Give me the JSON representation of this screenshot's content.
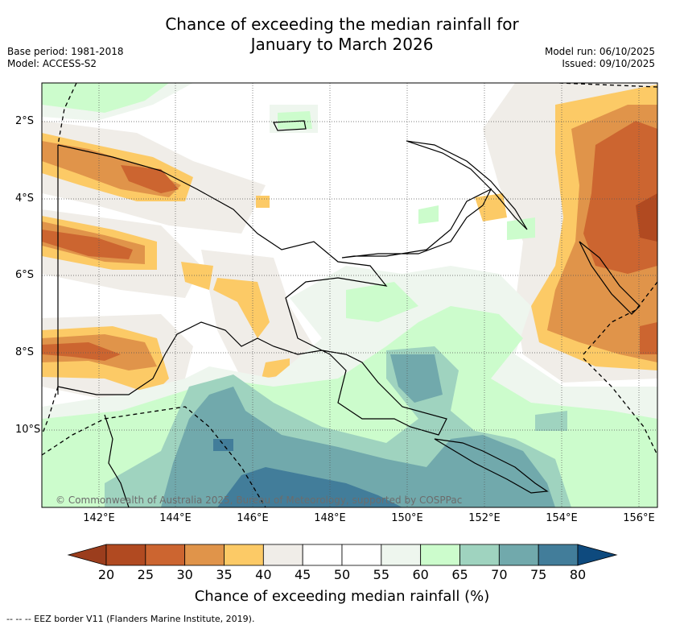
{
  "title": {
    "line1": "Chance of exceeding the median rainfall for",
    "line2": "January to March 2026"
  },
  "meta": {
    "base_period": "Base period: 1981-2018",
    "model": "Model: ACCESS-S2",
    "model_run": "Model run: 06/10/2025",
    "issued": "Issued: 09/10/2025"
  },
  "map": {
    "lon_labels": [
      "142°E",
      "144°E",
      "146°E",
      "148°E",
      "150°E",
      "152°E",
      "154°E",
      "156°E"
    ],
    "lat_labels": [
      "2°S",
      "4°S",
      "6°S",
      "8°S",
      "10°S"
    ],
    "copyright": "© Commonwealth of Australia 2025, Bureau of Meteorology, supported by COSPPac"
  },
  "colorbar": {
    "title": "Chance of exceeding median rainfall (%)",
    "ticks": [
      "20",
      "25",
      "30",
      "35",
      "40",
      "45",
      "50",
      "55",
      "60",
      "65",
      "70",
      "75",
      "80"
    ],
    "colors": [
      "#b14a21",
      "#cc6530",
      "#e0944a",
      "#fcca66",
      "#f0ede8",
      "#ffffff",
      "#ffffff",
      "#eef6ee",
      "#ccfccc",
      "#9fd3bf",
      "#71a9ac",
      "#427d9a"
    ],
    "low_extend_color": "#9b3d1d",
    "high_extend_color": "#0e4a7e"
  },
  "legend_note": "--  --  -- EEZ border V11 (Flanders Marine Institute, 2019)."
}
